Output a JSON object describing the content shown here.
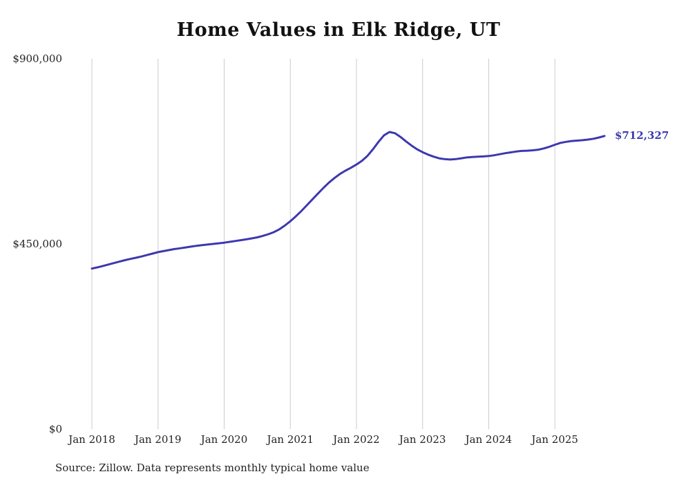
{
  "page": {
    "title": "Home Values in Elk Ridge, UT",
    "source_note": "Source: Zillow. Data represents monthly typical home value"
  },
  "chart_data": {
    "type": "line",
    "title": "Home Values in Elk Ridge, UT",
    "series_name": "Monthly typical home value",
    "line_color": "#3d38ae",
    "grid_color": "#cccccc",
    "tick_label_color": "#222222",
    "grid": "vertical-only",
    "legend": "none",
    "ylim": [
      0,
      900000
    ],
    "y_ticks": [
      {
        "label": "$0",
        "value": 0
      },
      {
        "label": "$450,000",
        "value": 450000
      },
      {
        "label": "$900,000",
        "value": 900000
      }
    ],
    "x_ticks": [
      "Jan 2018",
      "Jan 2019",
      "Jan 2020",
      "Jan 2021",
      "Jan 2022",
      "Jan 2023",
      "Jan 2024",
      "Jan 2025"
    ],
    "x_tick_month_interval": 12,
    "end_label": "$712,327",
    "end_value": 712327,
    "months": [
      "2018-01",
      "2018-02",
      "2018-03",
      "2018-04",
      "2018-05",
      "2018-06",
      "2018-07",
      "2018-08",
      "2018-09",
      "2018-10",
      "2018-11",
      "2018-12",
      "2019-01",
      "2019-02",
      "2019-03",
      "2019-04",
      "2019-05",
      "2019-06",
      "2019-07",
      "2019-08",
      "2019-09",
      "2019-10",
      "2019-11",
      "2019-12",
      "2020-01",
      "2020-02",
      "2020-03",
      "2020-04",
      "2020-05",
      "2020-06",
      "2020-07",
      "2020-08",
      "2020-09",
      "2020-10",
      "2020-11",
      "2020-12",
      "2021-01",
      "2021-02",
      "2021-03",
      "2021-04",
      "2021-05",
      "2021-06",
      "2021-07",
      "2021-08",
      "2021-09",
      "2021-10",
      "2021-11",
      "2021-12",
      "2022-01",
      "2022-02",
      "2022-03",
      "2022-04",
      "2022-05",
      "2022-06",
      "2022-07",
      "2022-08",
      "2022-09",
      "2022-10",
      "2022-11",
      "2022-12",
      "2023-01",
      "2023-02",
      "2023-03",
      "2023-04",
      "2023-05",
      "2023-06",
      "2023-07",
      "2023-08",
      "2023-09",
      "2023-10",
      "2023-11",
      "2023-12",
      "2024-01",
      "2024-02",
      "2024-03",
      "2024-04",
      "2024-05",
      "2024-06",
      "2024-07",
      "2024-08",
      "2024-09",
      "2024-10",
      "2024-11",
      "2024-12",
      "2025-01",
      "2025-02",
      "2025-03",
      "2025-04",
      "2025-05",
      "2025-06",
      "2025-07",
      "2025-08",
      "2025-09",
      "2025-10"
    ],
    "values": [
      390000,
      393000,
      396500,
      400000,
      403500,
      407000,
      410500,
      413500,
      416500,
      419500,
      423000,
      426500,
      430000,
      432500,
      435000,
      437500,
      439500,
      441500,
      443500,
      445500,
      447000,
      448500,
      450000,
      451500,
      453000,
      455000,
      457000,
      459000,
      461000,
      463500,
      466000,
      469500,
      473500,
      478500,
      485500,
      494500,
      505000,
      517000,
      530000,
      544000,
      558000,
      572000,
      586000,
      599000,
      610000,
      620000,
      628000,
      635000,
      643000,
      652000,
      664000,
      680000,
      698000,
      714000,
      722000,
      719000,
      710000,
      699000,
      689000,
      680000,
      673000,
      667000,
      662000,
      658000,
      656000,
      655000,
      656000,
      658000,
      660000,
      661000,
      662000,
      662500,
      663500,
      665500,
      668000,
      670500,
      672500,
      674500,
      676000,
      676500,
      677500,
      679000,
      682000,
      686000,
      691000,
      695500,
      698000,
      700000,
      701000,
      702000,
      703500,
      705500,
      708500,
      712327
    ],
    "xlabel": "",
    "ylabel": ""
  }
}
